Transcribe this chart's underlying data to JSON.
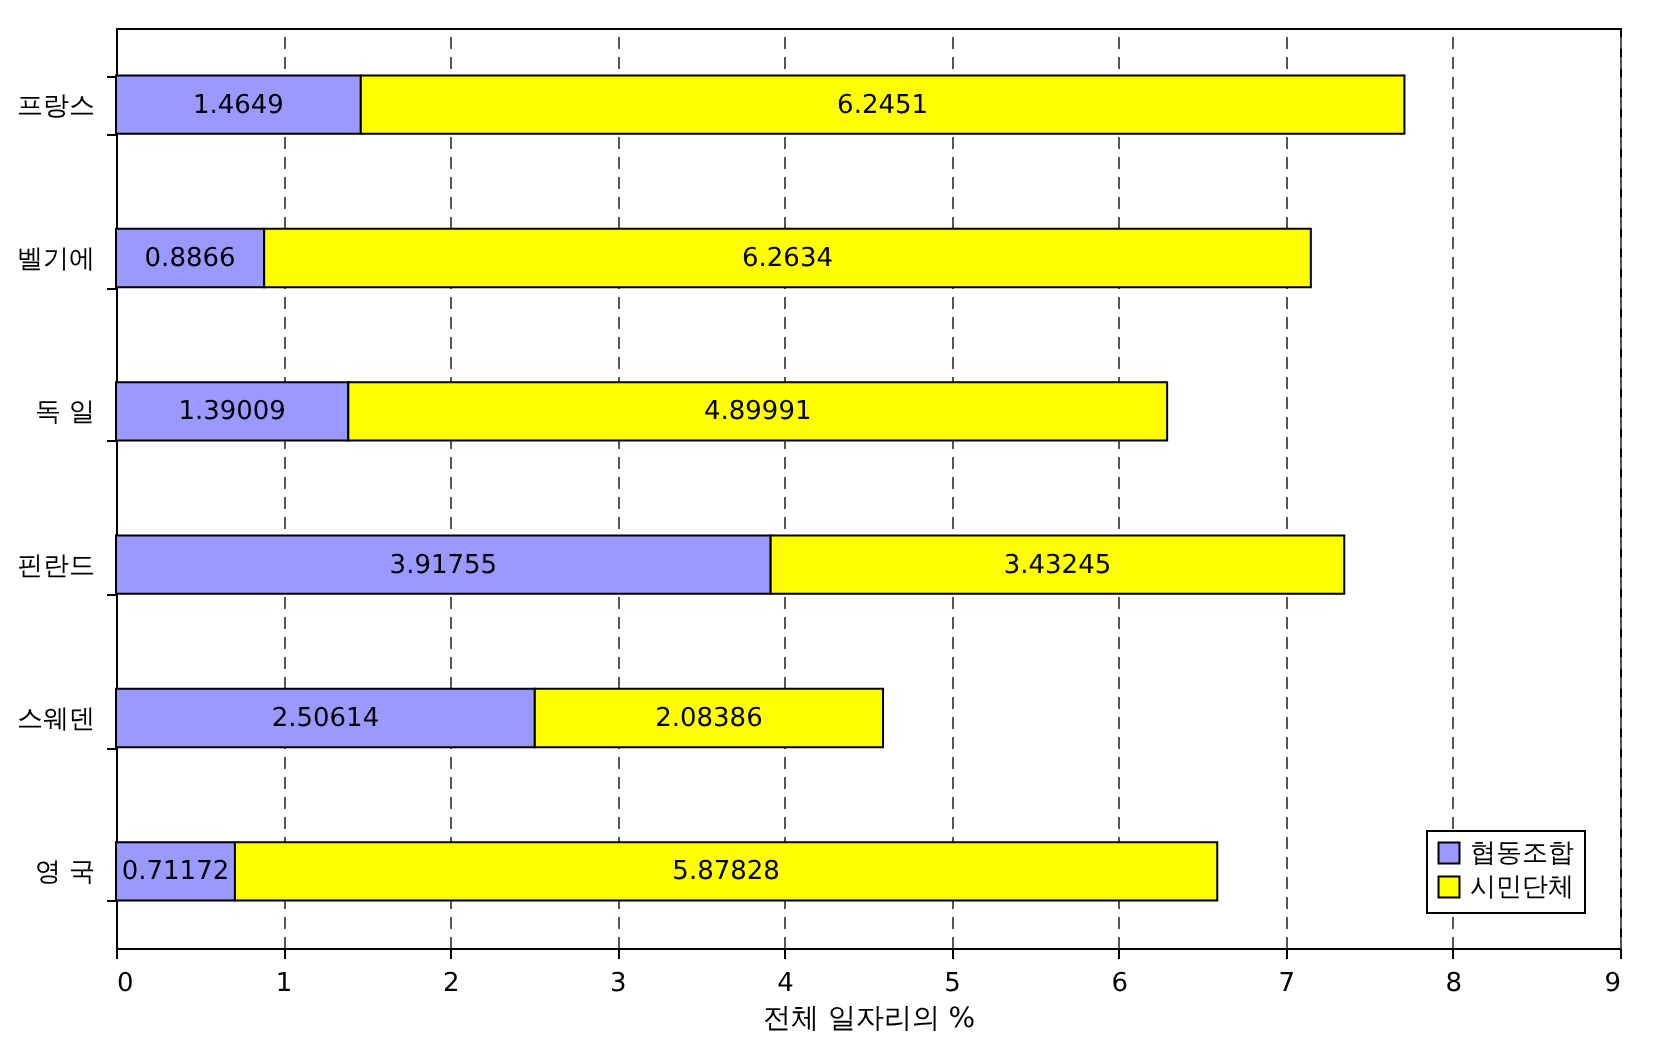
{
  "chart_data": {
    "type": "bar",
    "orientation": "horizontal",
    "stacked": true,
    "xlabel": "전체 일자리의 %",
    "categories": [
      "프랑스",
      "벨기에",
      "독 일",
      "핀란드",
      "스웨덴",
      "영 국"
    ],
    "series": [
      {
        "name": "협동조합",
        "color": "#9999ff",
        "values": [
          1.4649,
          0.8866,
          1.39009,
          3.91755,
          2.50614,
          0.71172
        ]
      },
      {
        "name": "시민단체",
        "color": "#ffff00",
        "values": [
          6.2451,
          6.2634,
          4.89991,
          3.43245,
          2.08386,
          5.87828
        ]
      }
    ],
    "xlim": [
      0,
      9
    ],
    "xticks": [
      0,
      1,
      2,
      3,
      4,
      5,
      6,
      7,
      8,
      9
    ],
    "grid": "x",
    "legend": "bottom right",
    "data_labels": true
  }
}
